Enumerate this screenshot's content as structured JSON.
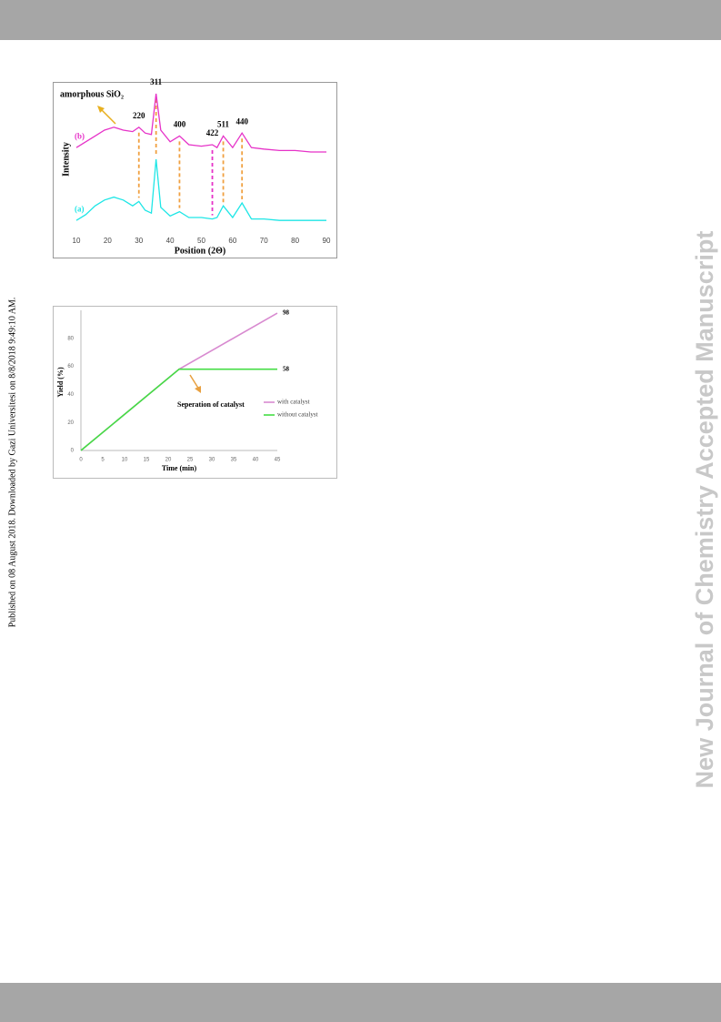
{
  "side_note": "Published on 08 August 2018. Downloaded by Gazi Universitesi on 8/8/2018 9:49:10 AM.",
  "watermark": "New Journal of Chemistry Accepted Manuscript",
  "chart_data": [
    {
      "type": "line",
      "x_label": "Position (2Θ)",
      "y_label": "Intensity",
      "annotation": "amorphous SiO₂",
      "x": [
        10,
        13,
        16,
        19,
        22,
        25,
        28,
        30,
        32,
        34,
        35.5,
        37,
        40,
        43,
        46,
        50,
        53.5,
        55,
        57,
        60,
        63,
        66,
        70,
        75,
        80,
        85,
        90
      ],
      "xlim": [
        10,
        90
      ],
      "xticks": [
        10,
        20,
        30,
        40,
        50,
        60,
        70,
        80,
        90
      ],
      "ylim": [
        0,
        100
      ],
      "series": [
        {
          "name": "(a)",
          "color": "#1ee6e6",
          "values": [
            8,
            12,
            18,
            22,
            24,
            22,
            18,
            21,
            15,
            13,
            50,
            17,
            11,
            14,
            10,
            10,
            9,
            10,
            18,
            10,
            20,
            9,
            9,
            8,
            8,
            8,
            8
          ]
        },
        {
          "name": "(b)",
          "color": "#e632c8",
          "values": [
            58,
            62,
            66,
            70,
            72,
            70,
            69,
            72,
            68,
            67,
            95,
            70,
            62,
            66,
            60,
            59,
            60,
            58,
            66,
            58,
            68,
            58,
            57,
            56,
            56,
            55,
            55
          ]
        }
      ],
      "peaks": [
        {
          "text": "220",
          "x": 30,
          "color": "#f0a040"
        },
        {
          "text": "311",
          "x": 35.5,
          "color": "#f0a040"
        },
        {
          "text": "400",
          "x": 43,
          "color": "#f0a040"
        },
        {
          "text": "422",
          "x": 53.5,
          "color": "#e632c8"
        },
        {
          "text": "511",
          "x": 57,
          "color": "#f0a040"
        },
        {
          "text": "440",
          "x": 63,
          "color": "#f0a040"
        }
      ]
    },
    {
      "type": "line",
      "x_label": "Time (min)",
      "y_label": "Yield (%)",
      "annotation": "Seperation of catalyst",
      "x": [
        0,
        22.5,
        45
      ],
      "xlim": [
        0,
        45
      ],
      "xticks": [
        0,
        5,
        10,
        15,
        20,
        25,
        30,
        35,
        40,
        45
      ],
      "ylim": [
        0,
        100
      ],
      "yticks": [
        0,
        20,
        40,
        60,
        80
      ],
      "series": [
        {
          "name": "with catalyst",
          "color": "#d88ad0",
          "values": [
            0,
            58,
            98
          ]
        },
        {
          "name": "without catalyst",
          "color": "#44dd44",
          "values": [
            0,
            58,
            58
          ]
        }
      ]
    }
  ]
}
